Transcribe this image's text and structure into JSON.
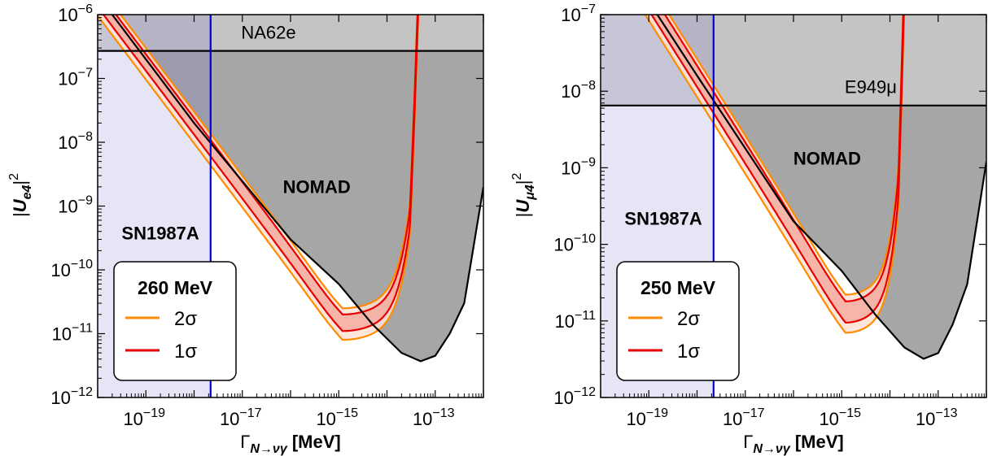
{
  "chart_data": [
    {
      "type": "line",
      "xlabel_main": "Γ",
      "xlabel_sub": "N→νγ",
      "xlabel_unit": " [MeV]",
      "ylabel_sub": "e4",
      "x_scale": "log",
      "y_scale": "log",
      "xlim": [
        1e-20,
        1e-12
      ],
      "ylim": [
        1e-12,
        1e-06
      ],
      "x_ticks": [
        {
          "value": 1e-19,
          "label": "10",
          "exp": "−19"
        },
        {
          "value": 1e-17,
          "label": "10",
          "exp": "−17"
        },
        {
          "value": 1e-15,
          "label": "10",
          "exp": "−15"
        },
        {
          "value": 1e-13,
          "label": "10",
          "exp": "−13"
        }
      ],
      "y_ticks": [
        {
          "value": 1e-12,
          "label": "10",
          "exp": "−12"
        },
        {
          "value": 1e-11,
          "label": "10",
          "exp": "−11"
        },
        {
          "value": 1e-10,
          "label": "10",
          "exp": "−10"
        },
        {
          "value": 1e-09,
          "label": "10",
          "exp": "−9"
        },
        {
          "value": 1e-08,
          "label": "10",
          "exp": "−8"
        },
        {
          "value": 1e-07,
          "label": "10",
          "exp": "−7"
        },
        {
          "value": 1e-06,
          "label": "10",
          "exp": "−6"
        }
      ],
      "regions": [
        {
          "name": "SN1987A",
          "bound_x_max": 2.2e-18,
          "color": "#e4e4fa"
        },
        {
          "name": "NA62e",
          "bound_y_min": 2.7e-07,
          "color": "#cdcdcd"
        },
        {
          "name": "NOMAD",
          "color": "#a6a6a6",
          "boundary": [
            [
              2e-20,
              1e-06
            ],
            [
              1e-18,
              2e-08
            ],
            [
              1e-16,
              3e-10
            ],
            [
              1e-15,
              6e-11
            ],
            [
              5e-15,
              1.4e-11
            ],
            [
              2e-14,
              5e-12
            ],
            [
              5e-14,
              3.7e-12
            ],
            [
              1e-13,
              4.5e-12
            ],
            [
              2e-13,
              1e-11
            ],
            [
              4e-13,
              3e-11
            ],
            [
              1e-12,
              2e-09
            ]
          ]
        }
      ],
      "region_label_positions": {
        "SN1987A": [
          2e-19,
          3e-10
        ],
        "NA62e": [
          3.5e-17,
          4.2e-07
        ],
        "NOMAD": [
          3.5e-16,
          1.6e-09
        ]
      },
      "bands": [
        {
          "name": "2σ",
          "color": "#ff8c00",
          "fill": "#fde3d6",
          "lower": {
            "vertex_x": 1.2e-15,
            "vertex_y": 8e-12
          },
          "upper": {
            "vertex_x": 1.2e-15,
            "vertex_y": 2.5e-11
          }
        },
        {
          "name": "1σ",
          "color": "#e60000",
          "fill": "#f5a99c",
          "lower": {
            "vertex_x": 1.2e-15,
            "vertex_y": 1.1e-11
          },
          "upper": {
            "vertex_x": 1.2e-15,
            "vertex_y": 2e-11
          }
        }
      ],
      "band_left_slope": -1,
      "band_right_wall_x": 3e-14,
      "vertical_line": {
        "x": 2.2e-18,
        "color": "#0000dd"
      },
      "horizontal_line": {
        "y": 2.7e-07,
        "color": "#000000"
      },
      "legend": {
        "title": "260 MeV",
        "items": [
          "2σ",
          "1σ"
        ],
        "position": "bottom-left"
      }
    },
    {
      "type": "line",
      "xlabel_main": "Γ",
      "xlabel_sub": "N→νγ",
      "xlabel_unit": " [MeV]",
      "ylabel_sub": "μ4",
      "x_scale": "log",
      "y_scale": "log",
      "xlim": [
        1e-20,
        1e-12
      ],
      "ylim": [
        1e-12,
        1e-07
      ],
      "x_ticks": [
        {
          "value": 1e-19,
          "label": "10",
          "exp": "−19"
        },
        {
          "value": 1e-17,
          "label": "10",
          "exp": "−17"
        },
        {
          "value": 1e-15,
          "label": "10",
          "exp": "−15"
        },
        {
          "value": 1e-13,
          "label": "10",
          "exp": "−13"
        }
      ],
      "y_ticks": [
        {
          "value": 1e-12,
          "label": "10",
          "exp": "−12"
        },
        {
          "value": 1e-11,
          "label": "10",
          "exp": "−11"
        },
        {
          "value": 1e-10,
          "label": "10",
          "exp": "−10"
        },
        {
          "value": 1e-09,
          "label": "10",
          "exp": "−9"
        },
        {
          "value": 1e-08,
          "label": "10",
          "exp": "−8"
        },
        {
          "value": 1e-07,
          "label": "10",
          "exp": "−7"
        }
      ],
      "regions": [
        {
          "name": "SN1987A",
          "bound_x_max": 2.2e-18,
          "color": "#e4e4fa"
        },
        {
          "name": "E949μ",
          "bound_y_min": 6.5e-09,
          "color": "#cdcdcd"
        },
        {
          "name": "NOMAD",
          "color": "#a6a6a6",
          "boundary": [
            [
              1.5e-19,
              1e-07
            ],
            [
              1e-18,
              1.6e-08
            ],
            [
              1e-16,
              2e-10
            ],
            [
              1e-15,
              4.5e-11
            ],
            [
              5e-15,
              1.2e-11
            ],
            [
              2e-14,
              4.5e-12
            ],
            [
              5e-14,
              3.2e-12
            ],
            [
              1e-13,
              3.8e-12
            ],
            [
              2e-13,
              9e-12
            ],
            [
              4e-13,
              3e-11
            ],
            [
              1e-12,
              1.2e-09
            ]
          ]
        }
      ],
      "region_label_positions": {
        "SN1987A": [
          2e-19,
          1.8e-10
        ],
        "E949μ": [
          4e-15,
          9.5e-09
        ],
        "NOMAD": [
          5e-16,
          1.1e-09
        ]
      },
      "bands": [
        {
          "name": "2σ",
          "color": "#ff8c00",
          "fill": "#fde3d6",
          "lower": {
            "vertex_x": 1.2e-15,
            "vertex_y": 7e-12
          },
          "upper": {
            "vertex_x": 1.2e-15,
            "vertex_y": 2.2e-11
          }
        },
        {
          "name": "1σ",
          "color": "#e60000",
          "fill": "#f5a99c",
          "lower": {
            "vertex_x": 1.2e-15,
            "vertex_y": 9.5e-12
          },
          "upper": {
            "vertex_x": 1.2e-15,
            "vertex_y": 1.8e-11
          }
        }
      ],
      "band_left_slope": -1,
      "band_right_wall_x": 1.5e-14,
      "vertical_line": {
        "x": 2.2e-18,
        "color": "#0000dd"
      },
      "horizontal_line": {
        "y": 6.5e-09,
        "color": "#000000"
      },
      "legend": {
        "title": "250 MeV",
        "items": [
          "2σ",
          "1σ"
        ],
        "position": "bottom-left"
      }
    }
  ]
}
